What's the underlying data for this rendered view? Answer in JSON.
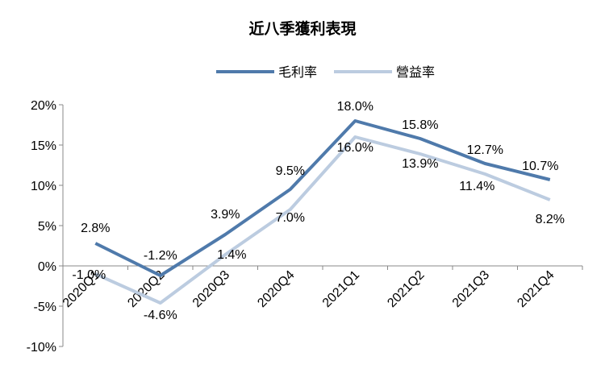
{
  "chart_data": {
    "type": "line",
    "title": "近八季獲利表現",
    "categories": [
      "2020Q1",
      "2020Q2",
      "2020Q3",
      "2020Q4",
      "2021Q1",
      "2021Q2",
      "2021Q3",
      "2021Q4"
    ],
    "ylim": [
      -10,
      20
    ],
    "yticks": [
      "-10%",
      "-5%",
      "0%",
      "5%",
      "10%",
      "15%",
      "20%"
    ],
    "grid": false,
    "legend_position": "top-center",
    "series": [
      {
        "name": "毛利率",
        "color": "#4f7aab",
        "values": [
          2.8,
          -1.2,
          3.9,
          9.5,
          18.0,
          15.8,
          12.7,
          10.7
        ],
        "labels": [
          "2.8%",
          "-1.2%",
          "3.9%",
          "9.5%",
          "18.0%",
          "15.8%",
          "12.7%",
          "10.7%"
        ]
      },
      {
        "name": "營益率",
        "color": "#bccce0",
        "values": [
          -1.0,
          -4.6,
          1.4,
          7.0,
          16.0,
          13.9,
          11.4,
          8.2
        ],
        "labels": [
          "-1.0%",
          "-4.6%",
          "1.4%",
          "7.0%",
          "16.0%",
          "13.9%",
          "11.4%",
          "8.2%"
        ]
      }
    ]
  }
}
